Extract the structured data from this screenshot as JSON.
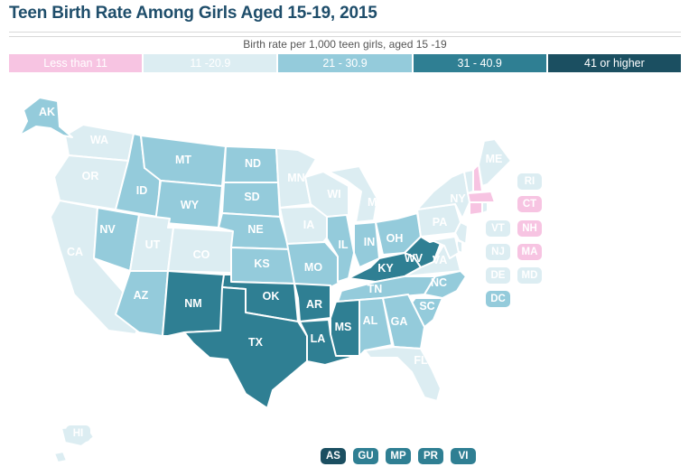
{
  "title": "Teen Birth Rate Among Girls Aged 15-19, 2015",
  "legend": {
    "caption": "Birth rate per 1,000 teen girls, aged 15 -19",
    "bins": [
      {
        "key": "b1",
        "label": "Less than 11",
        "color": "#f7c4e2",
        "text_color": "#ffffff"
      },
      {
        "key": "b2",
        "label": "11 -20.9",
        "color": "#dcedf2",
        "text_color": "#ffffff"
      },
      {
        "key": "b3",
        "label": "21 - 30.9",
        "color": "#94cbdb",
        "text_color": "#ffffff"
      },
      {
        "key": "b4",
        "label": "31 - 40.9",
        "color": "#2f7f93",
        "text_color": "#ffffff"
      },
      {
        "key": "b5",
        "label": "41 or higher",
        "color": "#1b4f61",
        "text_color": "#ffffff"
      }
    ]
  },
  "no_bin_color": "#d4cacb",
  "states": {
    "AK": "b3",
    "HI": "b2",
    "WA": "b2",
    "OR": "b2",
    "CA": "b2",
    "ID": "b3",
    "NV": "b3",
    "MT": "b3",
    "WY": "b3",
    "UT": "b2",
    "CO": "b2",
    "AZ": "b3",
    "NM": "b4",
    "ND": "b3",
    "SD": "b3",
    "NE": "b3",
    "KS": "b3",
    "OK": "b4",
    "TX": "b4",
    "MN": "b2",
    "IA": "b2",
    "MO": "b3",
    "AR": "b4",
    "LA": "b4",
    "WI": "b2",
    "IL": "b3",
    "MI": "b2",
    "IN": "b3",
    "OH": "b3",
    "KY": "b4",
    "TN": "b3",
    "MS": "b4",
    "AL": "b3",
    "WV": "b4",
    "VA": "b2",
    "NC": "b3",
    "SC": "b3",
    "GA": "b3",
    "FL": "b2",
    "PA": "b2",
    "NY": "b2",
    "ME": "b2",
    "VT": "b2",
    "NH": "b1",
    "MA": "b1",
    "RI": "b2",
    "CT": "b1",
    "NJ": "b2",
    "DE": "b2",
    "MD": "b2",
    "DC": "b3"
  },
  "territories": {
    "AS": "b5",
    "GU": "b4",
    "MP": "b4",
    "PR": "b4",
    "VI": "b4"
  }
}
